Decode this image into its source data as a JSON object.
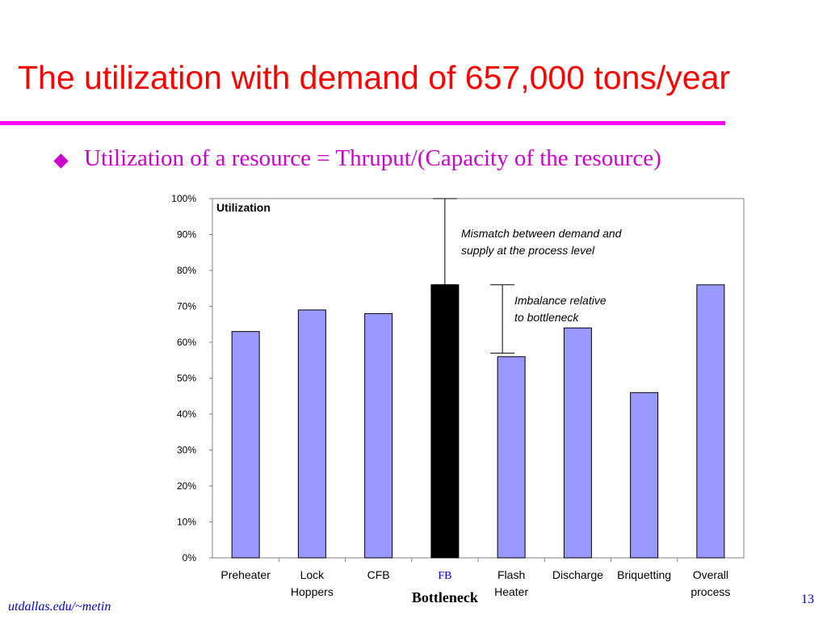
{
  "slide": {
    "title": "The utilization with demand of 657,000 tons/year",
    "bullet": "Utilization of a resource = Thruput/(Capacity of the resource)",
    "footer_source": "utdallas.edu/~metin",
    "page_number": "13",
    "colors": {
      "title": "#ff0000",
      "rule": "#ff00ff",
      "bullet": "#cc00cc",
      "footer": "#0000cc"
    }
  },
  "chart_data": {
    "type": "bar",
    "title": "Utilization",
    "categories": [
      [
        "Preheater"
      ],
      [
        "Lock",
        "Hoppers"
      ],
      [
        "CFB"
      ],
      [
        "FB"
      ],
      [
        "Flash",
        "Heater"
      ],
      [
        "Discharge"
      ],
      [
        "Briquetting"
      ],
      [
        "Overall",
        "process"
      ]
    ],
    "values": [
      0.63,
      0.69,
      0.68,
      0.76,
      0.56,
      0.64,
      0.46,
      0.76
    ],
    "ylim": [
      0,
      1
    ],
    "yticks": [
      "0%",
      "10%",
      "20%",
      "30%",
      "40%",
      "50%",
      "60%",
      "70%",
      "80%",
      "90%",
      "100%"
    ],
    "bar_color": "#9999ff",
    "highlight_index": 3,
    "highlight_color": "#000000",
    "highlight_label_color": "#0000cc",
    "bottleneck_label": "Bottleneck",
    "annotations": [
      {
        "text": [
          "Mismatch between demand and",
          "supply at the process level"
        ],
        "from": 1.0,
        "to": 0.76
      },
      {
        "text": [
          "Imbalance relative",
          "to bottleneck"
        ],
        "from": 0.76,
        "to": 0.57
      }
    ],
    "grid": false,
    "legend": "none"
  }
}
